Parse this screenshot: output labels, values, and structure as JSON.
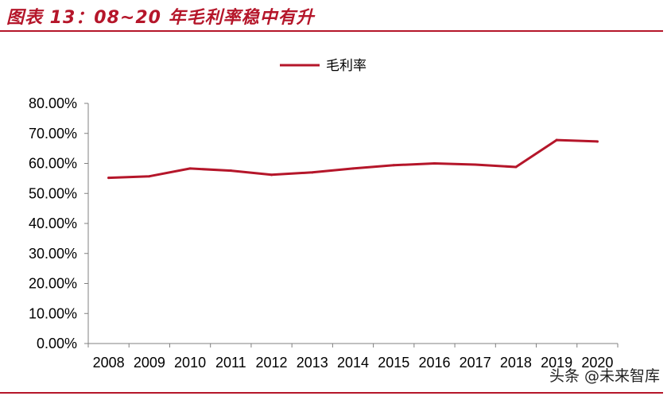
{
  "header": {
    "title": "图表 13：08~20 年毛利率稳中有升"
  },
  "watermark": "头条 @未来智库",
  "colors": {
    "accent": "#b5162a",
    "series": "#b5162a"
  },
  "chart_data": {
    "type": "line",
    "title": "",
    "xlabel": "",
    "ylabel": "",
    "legend_position": "top-center",
    "grid": false,
    "x": [
      "2008",
      "2009",
      "2010",
      "2011",
      "2012",
      "2013",
      "2014",
      "2015",
      "2016",
      "2017",
      "2018",
      "2019",
      "2020"
    ],
    "ylim": [
      0,
      80
    ],
    "yticks": [
      "0.00%",
      "10.00%",
      "20.00%",
      "30.00%",
      "40.00%",
      "50.00%",
      "60.00%",
      "70.00%",
      "80.00%"
    ],
    "series": [
      {
        "name": "毛利率",
        "values": [
          55.2,
          55.7,
          58.3,
          57.6,
          56.2,
          57.0,
          58.3,
          59.4,
          60.0,
          59.6,
          58.8,
          67.8,
          67.3
        ]
      }
    ]
  }
}
